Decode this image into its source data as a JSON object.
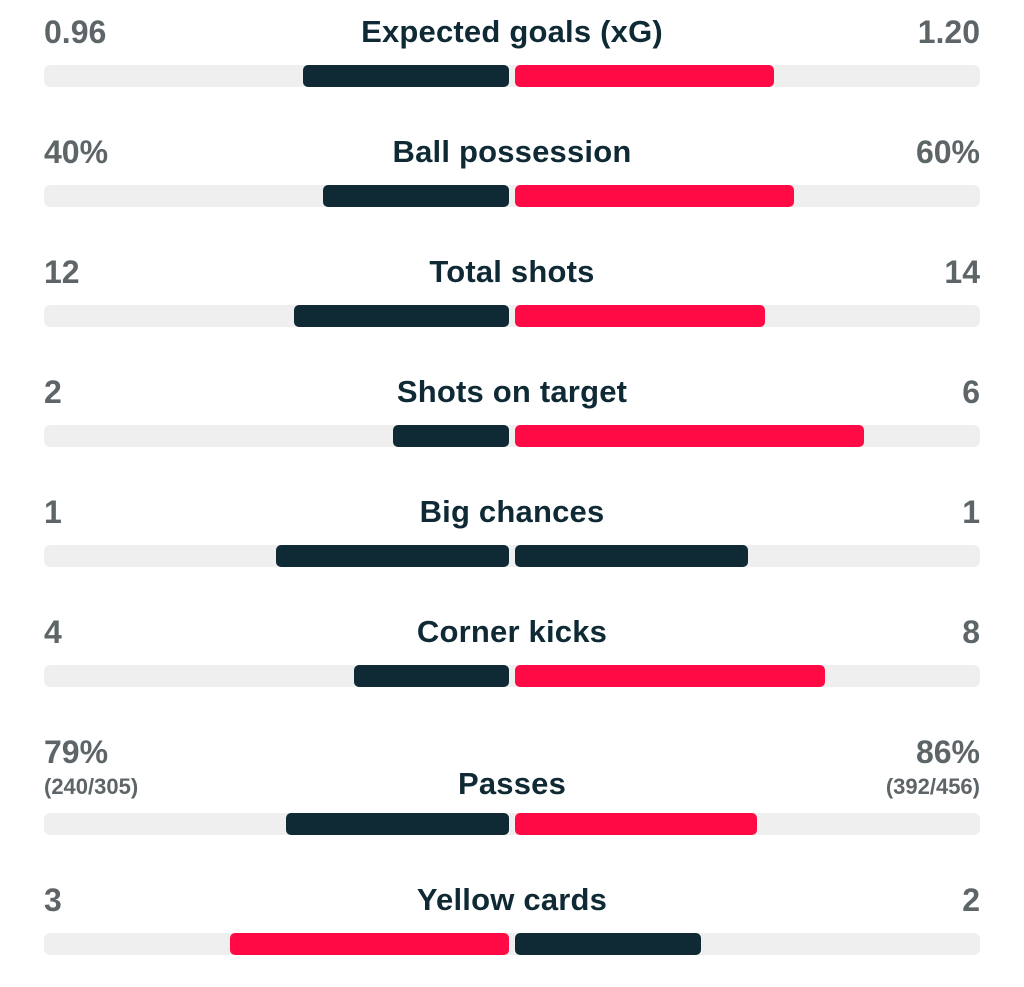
{
  "colors": {
    "home": "#0f2a35",
    "away": "#ff0a45",
    "track": "#efefef",
    "label": "#0f2a35",
    "value": "#5e6569"
  },
  "stats": [
    {
      "label": "Expected goals (xG)",
      "home": "0.96",
      "away": "1.20",
      "home_fill": 0.444,
      "away_fill": 0.556,
      "home_color": "home",
      "away_color": "away"
    },
    {
      "label": "Ball possession",
      "home": "40%",
      "away": "60%",
      "home_fill": 0.4,
      "away_fill": 0.6,
      "home_color": "home",
      "away_color": "away"
    },
    {
      "label": "Total shots",
      "home": "12",
      "away": "14",
      "home_fill": 0.462,
      "away_fill": 0.538,
      "home_color": "home",
      "away_color": "away"
    },
    {
      "label": "Shots on target",
      "home": "2",
      "away": "6",
      "home_fill": 0.25,
      "away_fill": 0.75,
      "home_color": "home",
      "away_color": "away"
    },
    {
      "label": "Big chances",
      "home": "1",
      "away": "1",
      "home_fill": 0.5,
      "away_fill": 0.5,
      "home_color": "home",
      "away_color": "home"
    },
    {
      "label": "Corner kicks",
      "home": "4",
      "away": "8",
      "home_fill": 0.333,
      "away_fill": 0.667,
      "home_color": "home",
      "away_color": "away"
    },
    {
      "label": "Passes",
      "home": "79%",
      "away": "86%",
      "home_sub": "(240/305)",
      "away_sub": "(392/456)",
      "home_fill": 0.479,
      "away_fill": 0.521,
      "home_color": "home",
      "away_color": "away"
    },
    {
      "label": "Yellow cards",
      "home": "3",
      "away": "2",
      "home_fill": 0.6,
      "away_fill": 0.4,
      "home_color": "away",
      "away_color": "home"
    }
  ]
}
